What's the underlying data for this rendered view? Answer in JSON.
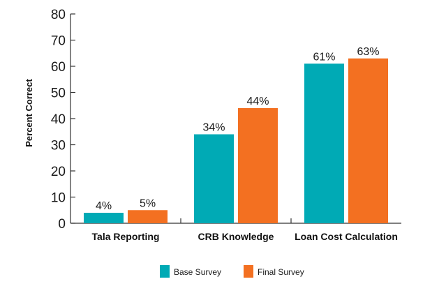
{
  "chart_data": {
    "type": "bar",
    "title": "",
    "xlabel": "",
    "ylabel": "Percent Correct",
    "ylim": [
      0,
      80
    ],
    "yticks": [
      0,
      10,
      20,
      30,
      40,
      50,
      60,
      70,
      80
    ],
    "categories": [
      "Tala Reporting",
      "CRB Knowledge",
      "Loan Cost Calculation"
    ],
    "series": [
      {
        "name": "Base Survey",
        "values": [
          4,
          34,
          61
        ],
        "labels": [
          "4%",
          "34%",
          "61%"
        ],
        "color": "#00AAB5"
      },
      {
        "name": "Final Survey",
        "values": [
          5,
          44,
          63
        ],
        "labels": [
          "5%",
          "44%",
          "63%"
        ],
        "color": "#F37021"
      }
    ],
    "grid": false,
    "legend": "bottom-center"
  }
}
